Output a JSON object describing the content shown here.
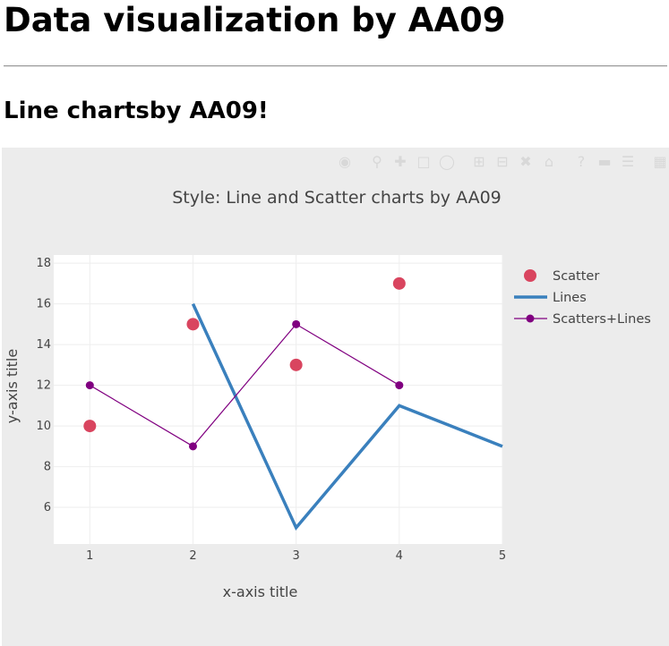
{
  "page": {
    "title": "Data visualization by AA09",
    "subtitle": "Line chartsby AA09!"
  },
  "modebar": {
    "groups": [
      [
        "camera-icon"
      ],
      [
        "zoom-icon",
        "pan-icon",
        "box-select-icon",
        "lasso-icon"
      ],
      [
        "zoom-in-icon",
        "zoom-out-icon",
        "autoscale-icon",
        "home-icon"
      ],
      [
        "hover-closest-icon",
        "toggle-spike-icon",
        "hover-compare-icon"
      ],
      [
        "plotly-logo-icon"
      ]
    ]
  },
  "chart_data": {
    "type": "line",
    "title": "Style: Line and Scatter charts by AA09",
    "xlabel": "x-axis title",
    "ylabel": "y-axis title",
    "xlim": [
      0.65,
      5
    ],
    "ylim": [
      4.2,
      18.4
    ],
    "xticks": [
      1,
      2,
      3,
      4,
      5
    ],
    "yticks": [
      6,
      8,
      10,
      12,
      14,
      16,
      18
    ],
    "grid": true,
    "legend_position": "right",
    "series": [
      {
        "name": "Scatter",
        "mode": "markers",
        "color": "#d9455f",
        "x": [
          1,
          2,
          3,
          4
        ],
        "y": [
          10,
          15,
          13,
          17
        ]
      },
      {
        "name": "Lines",
        "mode": "lines",
        "color": "#3a80bd",
        "x": [
          2,
          3,
          4,
          5
        ],
        "y": [
          16,
          5,
          11,
          9
        ]
      },
      {
        "name": "Scatters+Lines",
        "mode": "lines+markers",
        "color": "#800080",
        "x": [
          1,
          2,
          3,
          4
        ],
        "y": [
          12,
          9,
          15,
          12
        ]
      }
    ]
  }
}
